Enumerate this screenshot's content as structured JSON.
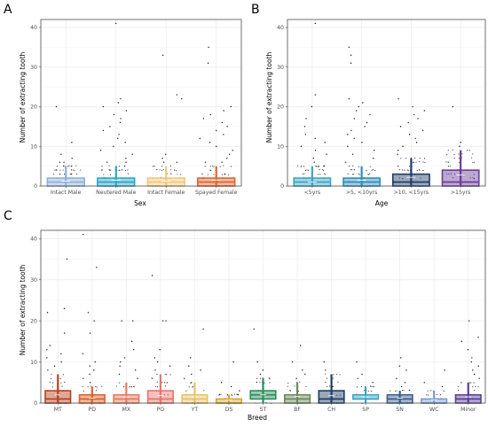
{
  "chart_data": [
    {
      "type": "box",
      "panel_label": "A",
      "xlabel": "Sex",
      "ylabel": "Number of extracting tooth",
      "ylim": [
        0,
        42
      ],
      "yticks": [
        0,
        10,
        20,
        30,
        40
      ],
      "grid": true,
      "categories": [
        "Intact Male",
        "Neutered Male",
        "Intact Female",
        "Spayed Female"
      ],
      "colors": [
        "#8fb1da",
        "#2aa7c9",
        "#f2c77d",
        "#e3662f"
      ],
      "boxes": [
        {
          "q1": 0,
          "median": 1,
          "q3": 2,
          "mean": 1.2,
          "whisker_low": 0,
          "whisker_high": 5
        },
        {
          "q1": 0,
          "median": 1,
          "q3": 2,
          "mean": 1.5,
          "whisker_low": 0,
          "whisker_high": 5
        },
        {
          "q1": 0,
          "median": 1,
          "q3": 2,
          "mean": 1.2,
          "whisker_low": 0,
          "whisker_high": 5
        },
        {
          "q1": 0,
          "median": 1,
          "q3": 2,
          "mean": 1.5,
          "whisker_low": 0,
          "whisker_high": 5
        }
      ],
      "outliers": [
        [
          20,
          11,
          6,
          6,
          7,
          8
        ],
        [
          41,
          22,
          21,
          20,
          19,
          18,
          17,
          16,
          15,
          14,
          13,
          12,
          11,
          10,
          9,
          8,
          7,
          6,
          6
        ],
        [
          33,
          23,
          22,
          8,
          7,
          6,
          6
        ],
        [
          35,
          31,
          20,
          19,
          18,
          17,
          16,
          15,
          14,
          13,
          12,
          11,
          10,
          9,
          8,
          7,
          6,
          6
        ]
      ]
    },
    {
      "type": "box",
      "panel_label": "B",
      "xlabel": "Age",
      "ylabel": "Number of extracting tooth",
      "ylim": [
        0,
        42
      ],
      "yticks": [
        0,
        10,
        20,
        30,
        40
      ],
      "grid": true,
      "categories": [
        "<5yrs",
        ">5, <10yrs",
        ">10, <15yrs",
        ">15yrs"
      ],
      "colors": [
        "#3aa6c6",
        "#2f8fbf",
        "#1f3d66",
        "#6a3f99"
      ],
      "boxes": [
        {
          "q1": 0,
          "median": 1,
          "q3": 2,
          "mean": 1.0,
          "whisker_low": 0,
          "whisker_high": 5
        },
        {
          "q1": 0,
          "median": 1,
          "q3": 2,
          "mean": 1.5,
          "whisker_low": 0,
          "whisker_high": 5
        },
        {
          "q1": 0,
          "median": 1,
          "q3": 3,
          "mean": 2.2,
          "whisker_low": 0,
          "whisker_high": 7
        },
        {
          "q1": 0,
          "median": 1,
          "q3": 4,
          "mean": 2.8,
          "whisker_low": 0,
          "whisker_high": 9
        }
      ],
      "outliers": [
        [
          41,
          23,
          20,
          17,
          15,
          13,
          12,
          11,
          10,
          9,
          8,
          7,
          6
        ],
        [
          35,
          33,
          31,
          22,
          21,
          20,
          19,
          18,
          17,
          16,
          15,
          14,
          13,
          12,
          11,
          10,
          9,
          8,
          7,
          6
        ],
        [
          22,
          20,
          19,
          18,
          17,
          16,
          15,
          14,
          13,
          12,
          11,
          10,
          9,
          8
        ],
        [
          20,
          11,
          10
        ]
      ]
    },
    {
      "type": "box",
      "panel_label": "C",
      "xlabel": "Breed",
      "ylabel": "Number of extracting tooth",
      "ylim": [
        0,
        42
      ],
      "yticks": [
        0,
        10,
        20,
        30,
        40
      ],
      "grid": true,
      "categories": [
        "MT",
        "PD",
        "MX",
        "PO",
        "YT",
        "DS",
        "ST",
        "BF",
        "CH",
        "SP",
        "SN",
        "WC",
        "Minor"
      ],
      "colors": [
        "#b8411f",
        "#d9622b",
        "#e57b63",
        "#e8746a",
        "#e8c46a",
        "#d6a332",
        "#2b8f5a",
        "#6b8a5a",
        "#1f3d66",
        "#3aa6c6",
        "#3b5f8f",
        "#7a9ad0",
        "#5a3f99"
      ],
      "boxes": [
        {
          "q1": 0,
          "median": 1,
          "q3": 3,
          "mean": 2.0,
          "whisker_low": 0,
          "whisker_high": 7
        },
        {
          "q1": 0,
          "median": 1,
          "q3": 2,
          "mean": 1.2,
          "whisker_low": 0,
          "whisker_high": 4
        },
        {
          "q1": 0,
          "median": 1,
          "q3": 2,
          "mean": 1.5,
          "whisker_low": 0,
          "whisker_high": 5
        },
        {
          "q1": 0,
          "median": 1,
          "q3": 3,
          "mean": 1.8,
          "whisker_low": 0,
          "whisker_high": 7
        },
        {
          "q1": 0,
          "median": 1,
          "q3": 2,
          "mean": 1.5,
          "whisker_low": 0,
          "whisker_high": 5
        },
        {
          "q1": 0,
          "median": 0,
          "q3": 1,
          "mean": 0.7,
          "whisker_low": 0,
          "whisker_high": 2
        },
        {
          "q1": 1,
          "median": 2,
          "q3": 3,
          "mean": 2.0,
          "whisker_low": 0,
          "whisker_high": 6
        },
        {
          "q1": 0,
          "median": 1,
          "q3": 2,
          "mean": 1.6,
          "whisker_low": 0,
          "whisker_high": 5
        },
        {
          "q1": 0,
          "median": 1,
          "q3": 3,
          "mean": 1.8,
          "whisker_low": 0,
          "whisker_high": 7
        },
        {
          "q1": 1,
          "median": 1,
          "q3": 2,
          "mean": 1.5,
          "whisker_low": 0,
          "whisker_high": 4
        },
        {
          "q1": 0,
          "median": 1,
          "q3": 2,
          "mean": 1.2,
          "whisker_low": 0,
          "whisker_high": 3
        },
        {
          "q1": 0,
          "median": 0,
          "q3": 1,
          "mean": 0.8,
          "whisker_low": 0,
          "whisker_high": 3
        },
        {
          "q1": 0,
          "median": 1,
          "q3": 2,
          "mean": 1.5,
          "whisker_low": 0,
          "whisker_high": 5
        }
      ],
      "outliers": [
        [
          35,
          23,
          22,
          17,
          14,
          13,
          12,
          11,
          10,
          9,
          8
        ],
        [
          41,
          33,
          22,
          20,
          17,
          12,
          10,
          9,
          8,
          7,
          6,
          5
        ],
        [
          20,
          20,
          15,
          13,
          11,
          10,
          9,
          8,
          7,
          6
        ],
        [
          31,
          20,
          20,
          13,
          11,
          10,
          9,
          8
        ],
        [
          18,
          11,
          9,
          8,
          7,
          6
        ],
        [
          10,
          5,
          4,
          3
        ],
        [
          18,
          10,
          8,
          7
        ],
        [
          14,
          10,
          8,
          7,
          6
        ],
        [
          10,
          8
        ],
        [
          10,
          7,
          6,
          5
        ],
        [
          11,
          9,
          8,
          6,
          5,
          4
        ],
        [
          8,
          5,
          4
        ],
        [
          20,
          16,
          15,
          13,
          11,
          10,
          9,
          8,
          7,
          6
        ]
      ]
    }
  ]
}
